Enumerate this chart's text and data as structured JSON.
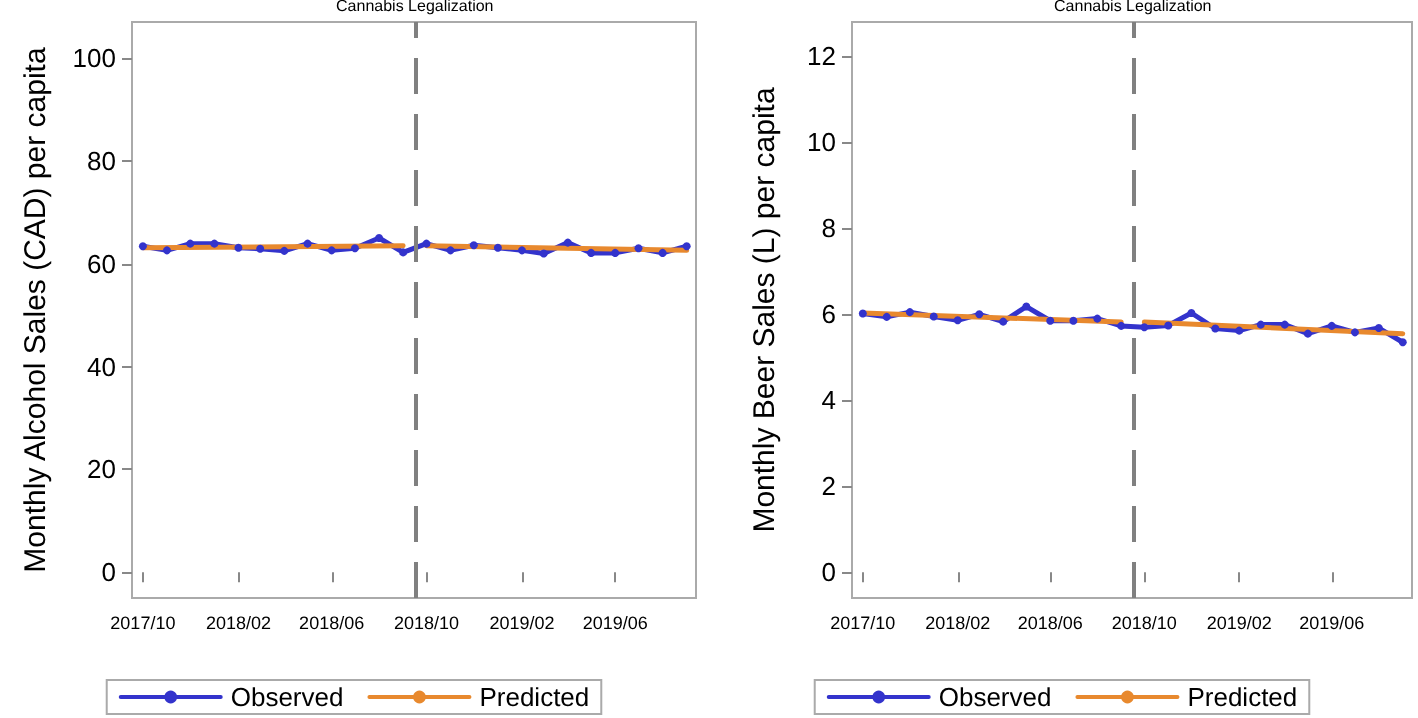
{
  "chart_data": [
    {
      "type": "line",
      "ylabel": "Monthly Alcohol Sales (CAD) per capita",
      "x": [
        "2017-10",
        "2017-11",
        "2017-12",
        "2018-01",
        "2018-02",
        "2018-03",
        "2018-04",
        "2018-05",
        "2018-06",
        "2018-07",
        "2018-08",
        "2018-09",
        "2018-10",
        "2018-11",
        "2018-12",
        "2019-01",
        "2019-02",
        "2019-03",
        "2019-04",
        "2019-05",
        "2019-06",
        "2019-07",
        "2019-08",
        "2019-09"
      ],
      "series": [
        {
          "name": "Observed",
          "color": "#3333cc",
          "marker": "circle",
          "values": [
            63.4,
            62.6,
            63.9,
            63.9,
            63.1,
            62.9,
            62.5,
            63.9,
            62.6,
            63.0,
            65.0,
            62.2,
            63.9,
            62.6,
            63.6,
            63.1,
            62.6,
            62.0,
            64.1,
            62.1,
            62.1,
            63.0,
            62.1,
            63.4
          ]
        },
        {
          "name": "Predicted",
          "color": "#e8892e",
          "marker": "none",
          "x": [
            "2017-10",
            "2018-09",
            "2018-09-15",
            "2018-10",
            "2019-09"
          ],
          "values": [
            63.1,
            63.5,
            null,
            63.5,
            62.6
          ]
        }
      ],
      "xlim": [
        "2017-09-17",
        "2019-09-13"
      ],
      "xticks": [
        {
          "value": "2017-10",
          "label": "2017/10"
        },
        {
          "value": "2018-02",
          "label": "2018/02"
        },
        {
          "value": "2018-06",
          "label": "2018/06"
        },
        {
          "value": "2018-10",
          "label": "2018/10"
        },
        {
          "value": "2019-02",
          "label": "2019/02"
        },
        {
          "value": "2019-06",
          "label": "2019/06"
        }
      ],
      "ylim": [
        -5,
        107
      ],
      "yticks": [
        0,
        20,
        40,
        60,
        80,
        100
      ],
      "ref_lines": [
        {
          "axis": "x",
          "value": "2018-09-16",
          "label": "Cannabis Legalization",
          "color": "#808080",
          "line_style": "dashed"
        }
      ],
      "grid": false,
      "legend": "bottom",
      "line_style": "solid"
    },
    {
      "type": "line",
      "ylabel": "Monthly Beer Sales (L) per capita",
      "x": [
        "2017-10",
        "2017-11",
        "2017-12",
        "2018-01",
        "2018-02",
        "2018-03",
        "2018-04",
        "2018-05",
        "2018-06",
        "2018-07",
        "2018-08",
        "2018-09",
        "2018-10",
        "2018-11",
        "2018-12",
        "2019-01",
        "2019-02",
        "2019-03",
        "2019-04",
        "2019-05",
        "2019-06",
        "2019-07",
        "2019-08",
        "2019-09"
      ],
      "series": [
        {
          "name": "Observed",
          "color": "#3333cc",
          "marker": "circle",
          "values": [
            6.02,
            5.94,
            6.05,
            5.95,
            5.86,
            6.0,
            5.83,
            6.18,
            5.85,
            5.85,
            5.9,
            5.73,
            5.7,
            5.74,
            6.03,
            5.67,
            5.62,
            5.76,
            5.76,
            5.55,
            5.73,
            5.58,
            5.68,
            5.35
          ]
        },
        {
          "name": "Predicted",
          "color": "#e8892e",
          "marker": "none",
          "x": [
            "2017-10",
            "2018-09",
            "2018-09-15",
            "2018-10",
            "2019-09"
          ],
          "values": [
            6.03,
            5.82,
            null,
            5.82,
            5.55
          ]
        }
      ],
      "xlim": [
        "2017-09-17",
        "2019-09-13"
      ],
      "xticks": [
        {
          "value": "2017-10",
          "label": "2017/10"
        },
        {
          "value": "2018-02",
          "label": "2018/02"
        },
        {
          "value": "2018-06",
          "label": "2018/06"
        },
        {
          "value": "2018-10",
          "label": "2018/10"
        },
        {
          "value": "2019-02",
          "label": "2019/02"
        },
        {
          "value": "2019-06",
          "label": "2019/06"
        }
      ],
      "ylim": [
        -0.6,
        12.8
      ],
      "yticks": [
        0,
        2,
        4,
        6,
        8,
        10,
        12
      ],
      "ref_lines": [
        {
          "axis": "x",
          "value": "2018-09-16",
          "label": "Cannabis Legalization",
          "color": "#808080",
          "line_style": "dashed"
        }
      ],
      "grid": false,
      "legend": "bottom",
      "line_style": "solid"
    }
  ]
}
